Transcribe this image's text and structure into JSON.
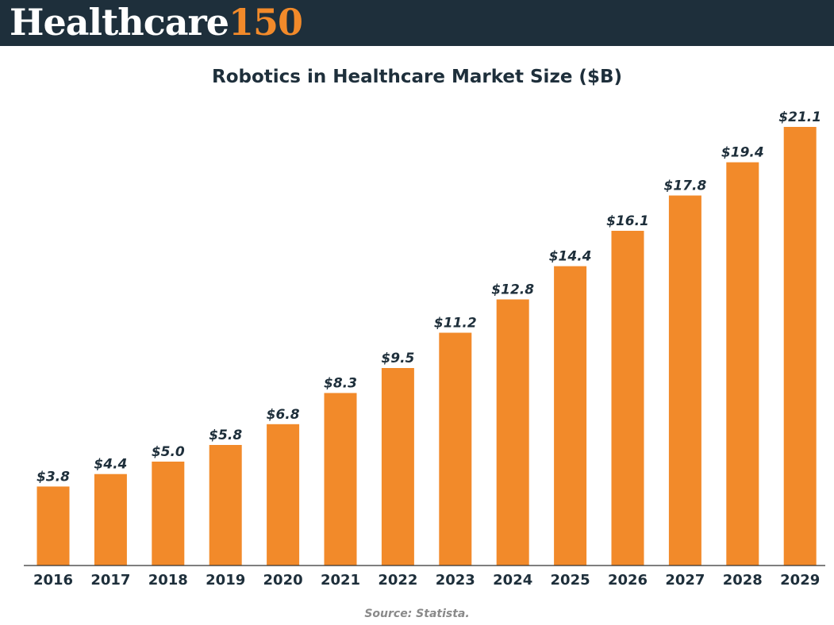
{
  "header": {
    "logo_word": "Healthcare",
    "logo_number": "150"
  },
  "colors": {
    "header_bg": "#1e2f3b",
    "bar": "#f28a2a",
    "text_dark": "#1e2f3b",
    "axis": "#333333"
  },
  "chart_data": {
    "type": "bar",
    "title": "Robotics in Healthcare Market Size ($B)",
    "categories": [
      "2016",
      "2017",
      "2018",
      "2019",
      "2020",
      "2021",
      "2022",
      "2023",
      "2024",
      "2025",
      "2026",
      "2027",
      "2028",
      "2029"
    ],
    "values": [
      3.8,
      4.4,
      5.0,
      5.8,
      6.8,
      8.3,
      9.5,
      11.2,
      12.8,
      14.4,
      16.1,
      17.8,
      19.4,
      21.1
    ],
    "data_labels": [
      "$3.8",
      "$4.4",
      "$5.0",
      "$5.8",
      "$6.8",
      "$8.3",
      "$9.5",
      "$11.2",
      "$12.8",
      "$14.4",
      "$16.1",
      "$17.8",
      "$19.4",
      "$21.1"
    ],
    "xlabel": "",
    "ylabel": "",
    "ylim": [
      0,
      21.1
    ],
    "grid": false,
    "legend": "none"
  },
  "footer": {
    "source": "Source: Statista."
  }
}
